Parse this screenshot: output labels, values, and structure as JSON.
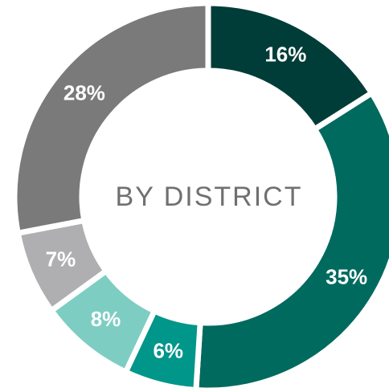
{
  "chart_data": {
    "type": "pie",
    "title": "BY DISTRICT",
    "values": [
      16,
      35,
      6,
      8,
      7,
      28
    ],
    "value_labels": [
      "16%",
      "35%",
      "6%",
      "8%",
      "7%",
      "28%"
    ],
    "colors": [
      "#003d38",
      "#006a5e",
      "#00968a",
      "#7dcdc3",
      "#afafb1",
      "#7a7a7a"
    ],
    "donut": true
  }
}
